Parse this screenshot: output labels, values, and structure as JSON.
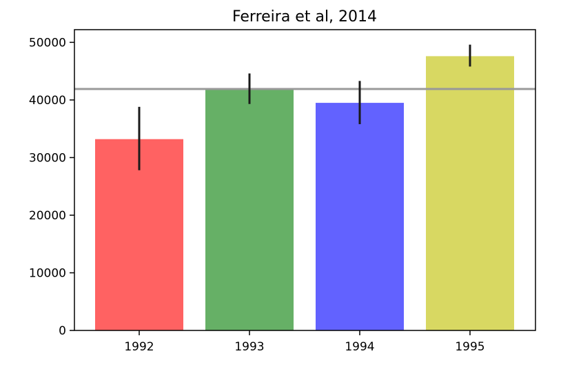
{
  "chart_data": {
    "type": "bar",
    "title": "Ferreira et al, 2014",
    "categories": [
      "1992",
      "1993",
      "1994",
      "1995"
    ],
    "values": [
      33200,
      42000,
      39500,
      47600
    ],
    "error_low": [
      27800,
      39300,
      35800,
      45800
    ],
    "error_high": [
      38800,
      44600,
      43300,
      49600
    ],
    "colors": [
      "#ff6262",
      "#66b066",
      "#6262ff",
      "#d8d862"
    ],
    "reference_line": {
      "value": 41900,
      "color": "#999999"
    },
    "error_color": "#1a1a1a",
    "xlabel": "",
    "ylabel": "",
    "ylim": [
      0,
      52200
    ],
    "yticks": [
      0,
      10000,
      20000,
      30000,
      40000,
      50000
    ],
    "ytick_labels": [
      "0",
      "10000",
      "20000",
      "30000",
      "40000",
      "50000"
    ],
    "grid": false,
    "legend": "none"
  }
}
